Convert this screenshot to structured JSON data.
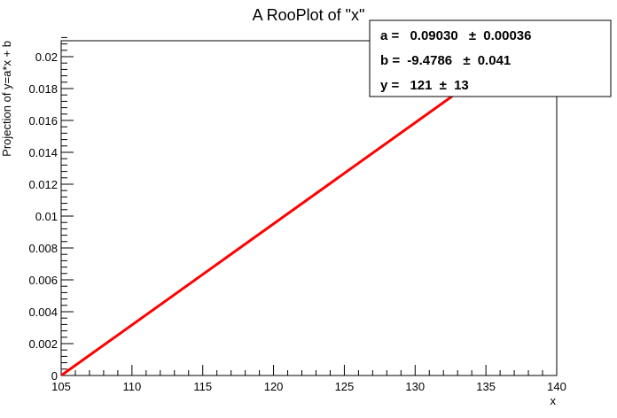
{
  "chart_data": {
    "type": "line",
    "title": "A RooPlot of \"x\"",
    "xlabel": "x",
    "ylabel": "Projection of y=a*x + b",
    "xlim": [
      105,
      140
    ],
    "ylim": [
      0,
      0.021
    ],
    "x_ticks": [
      105,
      110,
      115,
      120,
      125,
      130,
      135,
      140
    ],
    "x_tick_labels": [
      "105",
      "110",
      "115",
      "120",
      "125",
      "130",
      "135",
      "140"
    ],
    "y_ticks": [
      0,
      0.002,
      0.004,
      0.006,
      0.008,
      0.01,
      0.012,
      0.014,
      0.016,
      0.018,
      0.02
    ],
    "y_tick_labels": [
      "0",
      "0.002",
      "0.004",
      "0.006",
      "0.008",
      "0.01",
      "0.012",
      "0.014",
      "0.016",
      "0.018",
      "0.02"
    ],
    "grid": false,
    "series": [
      {
        "color": "#ff0000",
        "x": [
          105,
          140
        ],
        "y": [
          0,
          0.0222
        ]
      }
    ],
    "stats_box": {
      "placement": "top-right",
      "lines": [
        {
          "name": "a =",
          "value": "0.09030",
          "pm": "±",
          "error": "0.00036"
        },
        {
          "name": "b =",
          "value": "-9.4786",
          "pm": "±",
          "error": "0.041"
        },
        {
          "name": "y =",
          "value": "121",
          "pm": "±",
          "error": "13"
        }
      ]
    }
  }
}
